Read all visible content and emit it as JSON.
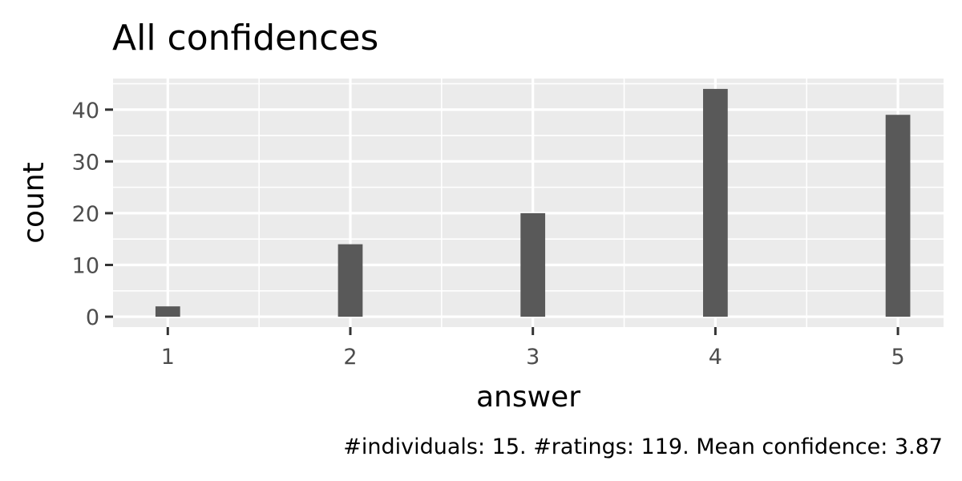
{
  "chart_data": {
    "type": "bar",
    "title": "All confidences",
    "xlabel": "answer",
    "ylabel": "count",
    "caption": "#individuals: 15. #ratings: 119. Mean confidence: 3.87",
    "x": [
      1,
      2,
      3,
      4,
      5
    ],
    "values": [
      2,
      14,
      20,
      44,
      39
    ],
    "x_ticks": [
      "1",
      "2",
      "3",
      "4",
      "5"
    ],
    "y_ticks": [
      0,
      10,
      20,
      30,
      40
    ],
    "xlim": [
      0.7,
      5.25
    ],
    "ylim": [
      -2,
      46
    ],
    "grid": true,
    "colors": {
      "bar": "#595959",
      "panel_background": "#ebebeb",
      "grid": "#ffffff",
      "tick_mark": "#333333"
    }
  }
}
